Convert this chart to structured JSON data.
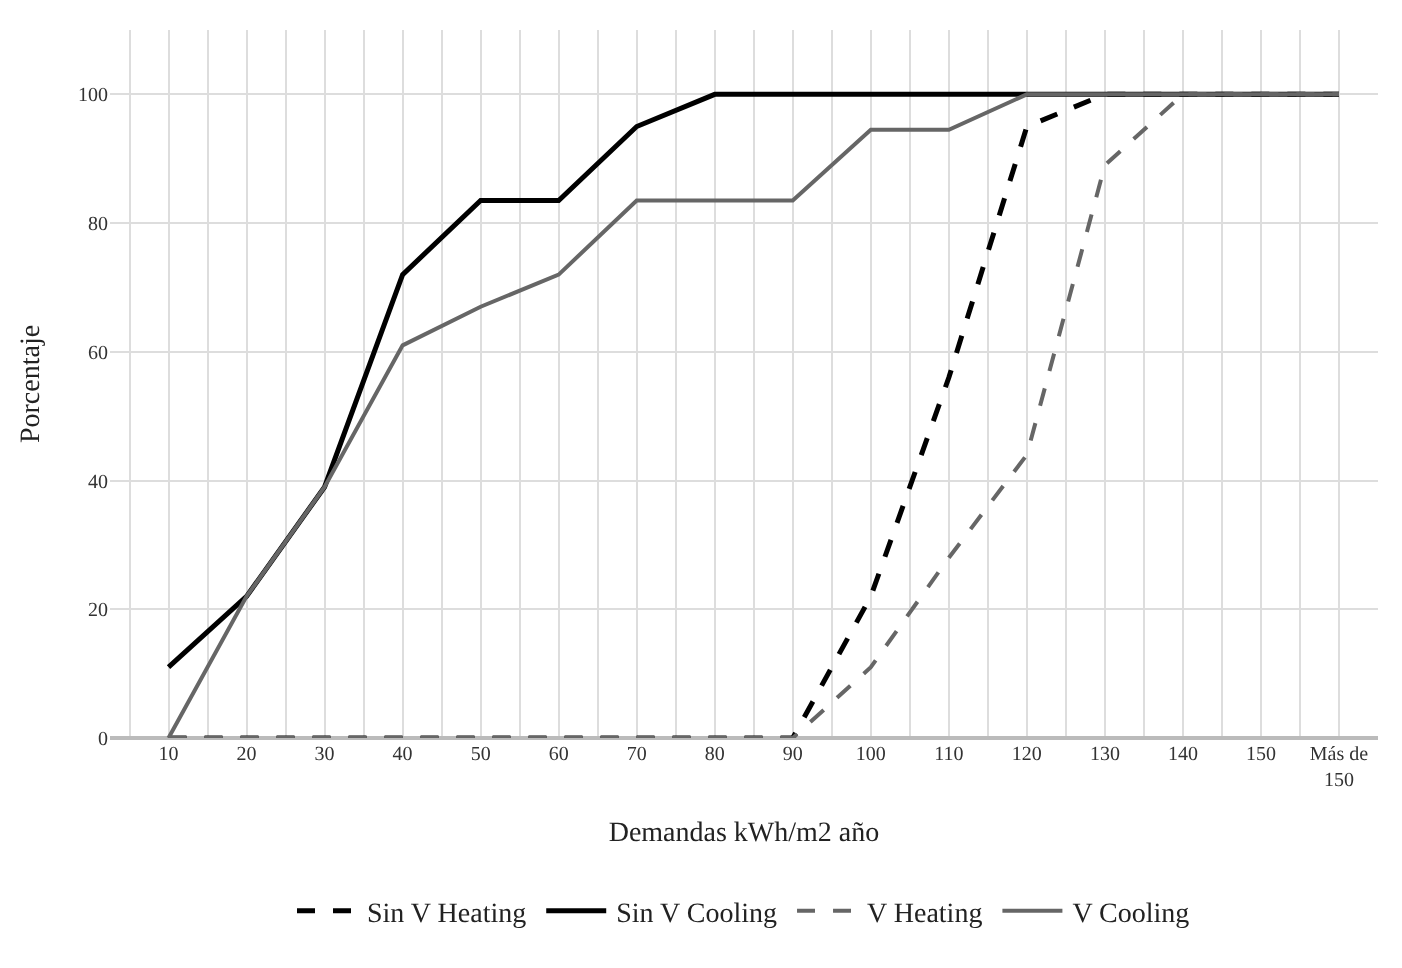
{
  "chart_data": {
    "type": "line",
    "xlabel": "Demandas kWh/m2 año",
    "ylabel": "Porcentaje",
    "categories": [
      "10",
      "20",
      "30",
      "40",
      "50",
      "60",
      "70",
      "80",
      "90",
      "100",
      "110",
      "120",
      "130",
      "140",
      "150",
      "Más de 150"
    ],
    "ylim": [
      0,
      110
    ],
    "yticks": [
      0,
      20,
      40,
      60,
      80,
      100
    ],
    "grid": true,
    "legend": "bottom",
    "series": [
      {
        "name": "Sin V Heating",
        "color": "#000000",
        "line_style": "dashed",
        "values": [
          0,
          0,
          0,
          0,
          0,
          0,
          0,
          0,
          0,
          22,
          56,
          95,
          100,
          100,
          100,
          100
        ]
      },
      {
        "name": "Sin V Cooling",
        "color": "#000000",
        "line_style": "solid",
        "values": [
          11,
          22,
          39,
          72,
          83.5,
          83.5,
          95,
          100,
          100,
          100,
          100,
          100,
          100,
          100,
          100,
          100
        ]
      },
      {
        "name": "V Heating",
        "color": "#666666",
        "line_style": "dashed",
        "values": [
          0,
          0,
          0,
          0,
          0,
          0,
          0,
          0,
          0,
          11,
          28,
          44,
          89,
          100,
          100,
          100
        ]
      },
      {
        "name": "V Cooling",
        "color": "#666666",
        "line_style": "solid",
        "values": [
          0,
          22,
          39,
          61,
          67,
          72,
          83.5,
          83.5,
          83.5,
          94.5,
          94.5,
          100,
          100,
          100,
          100,
          100
        ]
      }
    ]
  }
}
